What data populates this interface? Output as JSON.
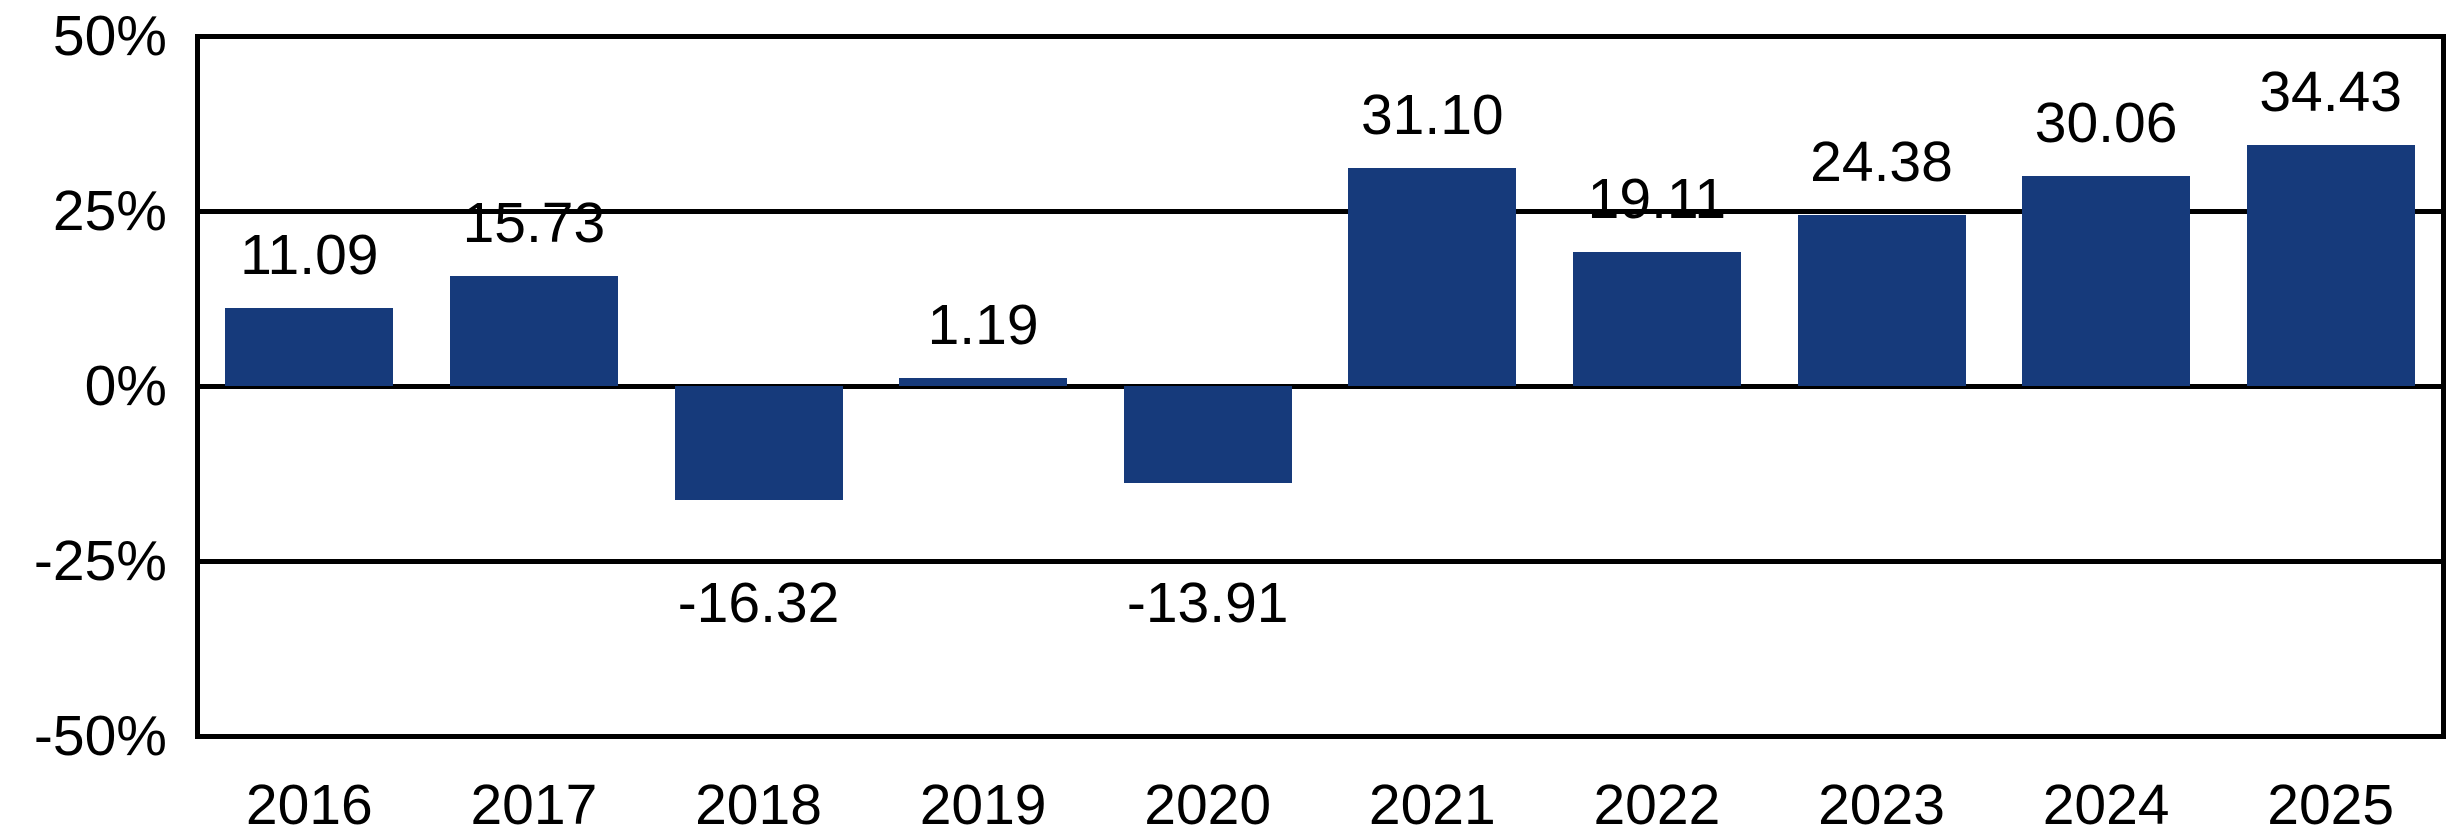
{
  "chart_data": {
    "type": "bar",
    "title": "",
    "xlabel": "",
    "ylabel": "",
    "categories": [
      "2016",
      "2017",
      "2018",
      "2019",
      "2020",
      "2021",
      "2022",
      "2023",
      "2024",
      "2025"
    ],
    "values": [
      11.09,
      15.73,
      -16.32,
      1.19,
      -13.91,
      31.1,
      19.11,
      24.38,
      30.06,
      34.43
    ],
    "value_labels": [
      "11.09",
      "15.73",
      "-16.32",
      "1.19",
      "-13.91",
      "31.10",
      "19.11",
      "24.38",
      "30.06",
      "34.43"
    ],
    "ylim": [
      -50,
      50
    ],
    "yticks": [
      {
        "value": 50,
        "label": "50%"
      },
      {
        "value": 25,
        "label": "25%"
      },
      {
        "value": 0,
        "label": "0%"
      },
      {
        "value": -25,
        "label": "-25%"
      },
      {
        "value": -50,
        "label": "-50%"
      }
    ],
    "grid": true,
    "legend": null,
    "bar_color": "#163A7B",
    "axis_color": "#000000",
    "text_color": "#000000",
    "background_color": "#FFFFFF"
  }
}
